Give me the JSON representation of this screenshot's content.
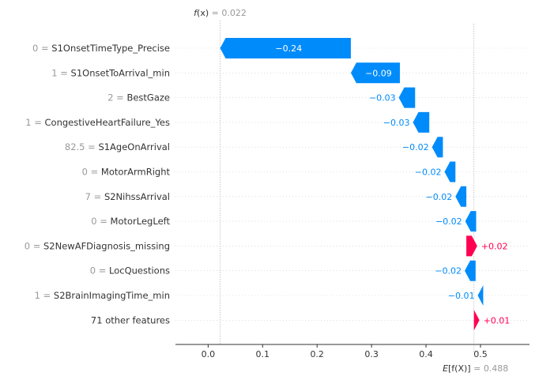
{
  "chart_data": {
    "type": "waterfall",
    "fx": {
      "label_main": "f",
      "label_arg": "(x)",
      "sep": " = ",
      "value": "0.022",
      "numeric": 0.022
    },
    "efx": {
      "label_main": "E",
      "label_arg": "[f(X)]",
      "sep": " = ",
      "value": "0.488",
      "numeric": 0.488
    },
    "xlim": [
      -0.06,
      0.59
    ],
    "xticks": [
      {
        "label": "0.0",
        "value": 0.0
      },
      {
        "label": "0.1",
        "value": 0.1
      },
      {
        "label": "0.2",
        "value": 0.2
      },
      {
        "label": "0.3",
        "value": 0.3
      },
      {
        "label": "0.4",
        "value": 0.4
      },
      {
        "label": "0.5",
        "value": 0.5
      }
    ],
    "features": [
      {
        "value": "0",
        "name": "S1OnsetTimeType_Precise",
        "shap": -0.24,
        "label": "−0.24",
        "start": 0.262
      },
      {
        "value": "1",
        "name": "S1OnsetToArrival_min",
        "shap": -0.09,
        "label": "−0.09",
        "start": 0.352
      },
      {
        "value": "2",
        "name": "BestGaze",
        "shap": -0.03,
        "label": "−0.03",
        "start": 0.38
      },
      {
        "value": "1",
        "name": "CongestiveHeartFailure_Yes",
        "shap": -0.03,
        "label": "−0.03",
        "start": 0.406
      },
      {
        "value": "82.5",
        "name": "S1AgeOnArrival",
        "shap": -0.02,
        "label": "−0.02",
        "start": 0.431
      },
      {
        "value": "0",
        "name": "MotorArmRight",
        "shap": -0.02,
        "label": "−0.02",
        "start": 0.454
      },
      {
        "value": "7",
        "name": "S2NihssArrival",
        "shap": -0.02,
        "label": "−0.02",
        "start": 0.474
      },
      {
        "value": "0",
        "name": "MotorLegLeft",
        "shap": -0.02,
        "label": "−0.02",
        "start": 0.492
      },
      {
        "value": "0",
        "name": "S2NewAFDiagnosis_missing",
        "shap": 0.02,
        "label": "+0.02",
        "start": 0.474
      },
      {
        "value": "0",
        "name": "LocQuestions",
        "shap": -0.02,
        "label": "−0.02",
        "start": 0.491
      },
      {
        "value": "1",
        "name": "S2BrainImagingTime_min",
        "shap": -0.01,
        "label": "−0.01",
        "start": 0.505
      },
      {
        "value": "",
        "name": "71 other features",
        "shap": 0.01,
        "label": "+0.01",
        "start": 0.488
      }
    ],
    "colors": {
      "negative": "#008bfb",
      "positive": "#ff0051",
      "tick_value": "#999999",
      "axis": "#333333"
    }
  }
}
